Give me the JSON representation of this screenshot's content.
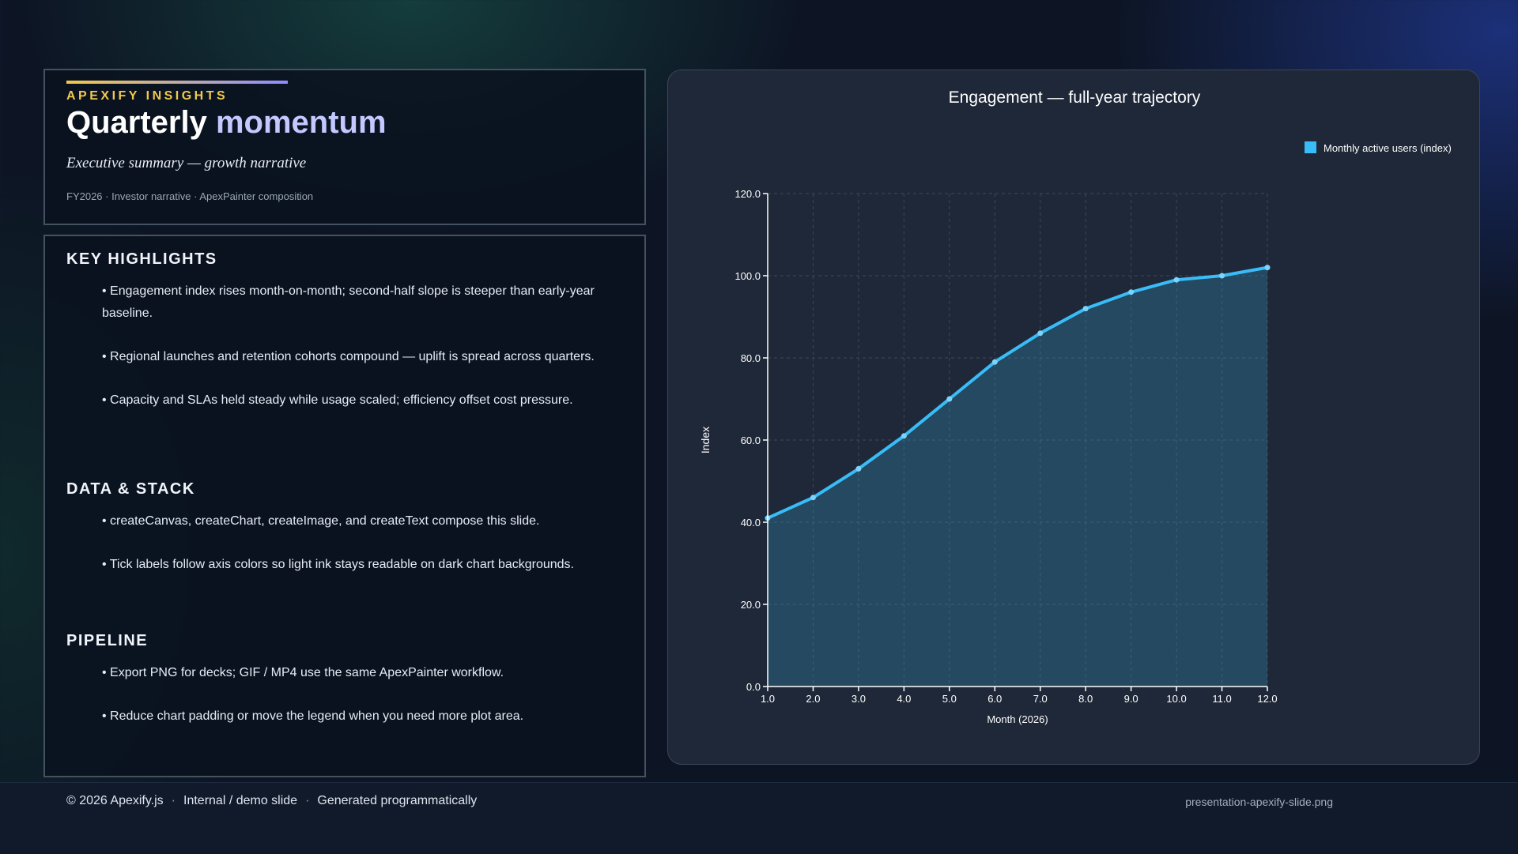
{
  "hero": {
    "eyebrow": "APEXIFY INSIGHTS",
    "title_part1": "Quarterly ",
    "title_part2": "momentum",
    "subtitle": "Executive summary — growth narrative",
    "meta": "FY2026 · Investor narrative · ApexPainter composition"
  },
  "sections": [
    {
      "title": "KEY HIGHLIGHTS",
      "bullets": [
        "• Engagement index rises month-on-month; second-half slope is steeper than early-year baseline.",
        "• Regional launches and retention cohorts compound — uplift is spread across quarters.",
        "• Capacity and SLAs held steady while usage scaled; efficiency offset cost pressure."
      ]
    },
    {
      "title": "DATA & STACK",
      "bullets": [
        "• createCanvas, createChart, createImage, and createText compose this slide.",
        "• Tick labels follow axis colors so light ink stays readable on dark chart backgrounds."
      ]
    },
    {
      "title": "PIPELINE",
      "bullets": [
        "• Export PNG for decks; GIF / MP4 use the same ApexPainter workflow.",
        "• Reduce chart padding or move the legend when you need more plot area."
      ]
    }
  ],
  "chart_data": {
    "type": "area",
    "title": "Engagement — full-year trajectory",
    "xlabel": "Month (2026)",
    "ylabel": "Index",
    "x": [
      1,
      2,
      3,
      4,
      5,
      6,
      7,
      8,
      9,
      10,
      11,
      12
    ],
    "xlim": [
      1,
      12
    ],
    "ylim": [
      0,
      120
    ],
    "x_ticks": [
      "1.0",
      "2.0",
      "3.0",
      "4.0",
      "5.0",
      "6.0",
      "7.0",
      "8.0",
      "9.0",
      "10.0",
      "11.0",
      "12.0"
    ],
    "y_ticks": [
      "0.0",
      "20.0",
      "40.0",
      "60.0",
      "80.0",
      "100.0",
      "120.0"
    ],
    "grid": true,
    "legend_position": "top-right",
    "series": [
      {
        "name": "Monthly active users (index)",
        "values": [
          41,
          46,
          53,
          61,
          70,
          79,
          86,
          92,
          96,
          99,
          100,
          102
        ],
        "color": "#38bdf8"
      }
    ]
  },
  "footer": {
    "copyright": "© 2026 Apexify.js",
    "item2": "Internal / demo slide",
    "item3": "Generated programmatically",
    "separator": "·",
    "filename": "presentation-apexify-slide.png"
  }
}
